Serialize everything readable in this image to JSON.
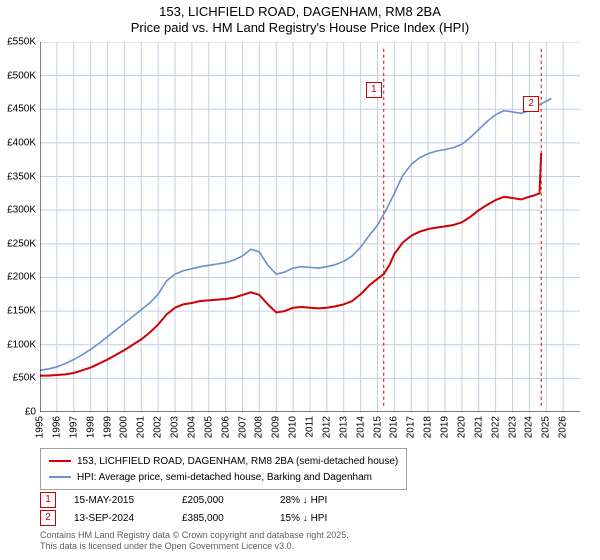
{
  "title": {
    "line1": "153, LICHFIELD ROAD, DAGENHAM, RM8 2BA",
    "line2": "Price paid vs. HM Land Registry's House Price Index (HPI)"
  },
  "chart": {
    "type": "line",
    "background_color": "#ffffff",
    "grid_color": "#c3d0e2",
    "grid_width": 1,
    "axis_color": "#000000",
    "tick_fontsize": 10,
    "x": {
      "min": 1995,
      "max": 2027,
      "ticks": [
        1995,
        1996,
        1997,
        1998,
        1999,
        2000,
        2001,
        2002,
        2003,
        2004,
        2005,
        2006,
        2007,
        2008,
        2009,
        2010,
        2011,
        2012,
        2013,
        2014,
        2015,
        2016,
        2017,
        2018,
        2019,
        2020,
        2021,
        2022,
        2023,
        2024,
        2025,
        2026
      ],
      "rotation": -90
    },
    "y": {
      "min": 0,
      "max": 550000,
      "ticks": [
        0,
        50000,
        100000,
        150000,
        200000,
        250000,
        300000,
        350000,
        400000,
        450000,
        500000,
        550000
      ],
      "tick_labels": [
        "£0",
        "£50K",
        "£100K",
        "£150K",
        "£200K",
        "£250K",
        "£300K",
        "£350K",
        "£400K",
        "£450K",
        "£500K",
        "£550K"
      ]
    },
    "series": [
      {
        "name": "price_paid",
        "label": "153, LICHFIELD ROAD, DAGENHAM, RM8 2BA (semi-detached house)",
        "color": "#d00000",
        "width": 2,
        "data": [
          [
            1995.0,
            54000
          ],
          [
            1995.5,
            54000
          ],
          [
            1996.0,
            55000
          ],
          [
            1996.5,
            56000
          ],
          [
            1997.0,
            58000
          ],
          [
            1997.5,
            62000
          ],
          [
            1998.0,
            66000
          ],
          [
            1998.5,
            72000
          ],
          [
            1999.0,
            78000
          ],
          [
            1999.5,
            85000
          ],
          [
            2000.0,
            92000
          ],
          [
            2000.5,
            100000
          ],
          [
            2001.0,
            108000
          ],
          [
            2001.5,
            118000
          ],
          [
            2002.0,
            130000
          ],
          [
            2002.5,
            145000
          ],
          [
            2003.0,
            155000
          ],
          [
            2003.5,
            160000
          ],
          [
            2004.0,
            162000
          ],
          [
            2004.5,
            165000
          ],
          [
            2005.0,
            166000
          ],
          [
            2005.5,
            167000
          ],
          [
            2006.0,
            168000
          ],
          [
            2006.5,
            170000
          ],
          [
            2007.0,
            174000
          ],
          [
            2007.5,
            178000
          ],
          [
            2008.0,
            174000
          ],
          [
            2008.5,
            160000
          ],
          [
            2009.0,
            148000
          ],
          [
            2009.5,
            150000
          ],
          [
            2010.0,
            155000
          ],
          [
            2010.5,
            156000
          ],
          [
            2011.0,
            155000
          ],
          [
            2011.5,
            154000
          ],
          [
            2012.0,
            155000
          ],
          [
            2012.5,
            157000
          ],
          [
            2013.0,
            160000
          ],
          [
            2013.5,
            165000
          ],
          [
            2014.0,
            175000
          ],
          [
            2014.5,
            188000
          ],
          [
            2015.0,
            198000
          ],
          [
            2015.37,
            205000
          ],
          [
            2015.7,
            218000
          ],
          [
            2016.0,
            235000
          ],
          [
            2016.5,
            252000
          ],
          [
            2017.0,
            262000
          ],
          [
            2017.5,
            268000
          ],
          [
            2018.0,
            272000
          ],
          [
            2018.5,
            274000
          ],
          [
            2019.0,
            276000
          ],
          [
            2019.5,
            278000
          ],
          [
            2020.0,
            282000
          ],
          [
            2020.5,
            290000
          ],
          [
            2021.0,
            300000
          ],
          [
            2021.5,
            308000
          ],
          [
            2022.0,
            315000
          ],
          [
            2022.5,
            320000
          ],
          [
            2023.0,
            318000
          ],
          [
            2023.5,
            316000
          ],
          [
            2024.0,
            320000
          ],
          [
            2024.3,
            322000
          ],
          [
            2024.6,
            325000
          ],
          [
            2024.7,
            385000
          ]
        ]
      },
      {
        "name": "hpi",
        "label": "HPI: Average price, semi-detached house, Barking and Dagenham",
        "color": "#6b8fc9",
        "width": 1.6,
        "data": [
          [
            1995.0,
            62000
          ],
          [
            1995.5,
            64000
          ],
          [
            1996.0,
            67000
          ],
          [
            1996.5,
            72000
          ],
          [
            1997.0,
            78000
          ],
          [
            1997.5,
            85000
          ],
          [
            1998.0,
            93000
          ],
          [
            1998.5,
            102000
          ],
          [
            1999.0,
            112000
          ],
          [
            1999.5,
            122000
          ],
          [
            2000.0,
            132000
          ],
          [
            2000.5,
            142000
          ],
          [
            2001.0,
            152000
          ],
          [
            2001.5,
            162000
          ],
          [
            2002.0,
            175000
          ],
          [
            2002.5,
            195000
          ],
          [
            2003.0,
            205000
          ],
          [
            2003.5,
            210000
          ],
          [
            2004.0,
            213000
          ],
          [
            2004.5,
            216000
          ],
          [
            2005.0,
            218000
          ],
          [
            2005.5,
            220000
          ],
          [
            2006.0,
            222000
          ],
          [
            2006.5,
            226000
          ],
          [
            2007.0,
            232000
          ],
          [
            2007.5,
            242000
          ],
          [
            2008.0,
            238000
          ],
          [
            2008.5,
            218000
          ],
          [
            2009.0,
            205000
          ],
          [
            2009.5,
            208000
          ],
          [
            2010.0,
            214000
          ],
          [
            2010.5,
            216000
          ],
          [
            2011.0,
            215000
          ],
          [
            2011.5,
            214000
          ],
          [
            2012.0,
            216000
          ],
          [
            2012.5,
            219000
          ],
          [
            2013.0,
            224000
          ],
          [
            2013.5,
            232000
          ],
          [
            2014.0,
            245000
          ],
          [
            2014.5,
            262000
          ],
          [
            2015.0,
            278000
          ],
          [
            2015.5,
            300000
          ],
          [
            2016.0,
            325000
          ],
          [
            2016.5,
            352000
          ],
          [
            2017.0,
            368000
          ],
          [
            2017.5,
            378000
          ],
          [
            2018.0,
            384000
          ],
          [
            2018.5,
            388000
          ],
          [
            2019.0,
            390000
          ],
          [
            2019.5,
            393000
          ],
          [
            2020.0,
            398000
          ],
          [
            2020.5,
            408000
          ],
          [
            2021.0,
            420000
          ],
          [
            2021.5,
            432000
          ],
          [
            2022.0,
            442000
          ],
          [
            2022.5,
            448000
          ],
          [
            2023.0,
            446000
          ],
          [
            2023.5,
            444000
          ],
          [
            2024.0,
            448000
          ],
          [
            2024.5,
            456000
          ],
          [
            2025.0,
            462000
          ],
          [
            2025.3,
            466000
          ]
        ]
      }
    ],
    "markers": [
      {
        "n": "1",
        "x": 2015.37,
        "y_top": 45000,
        "y_bot": 540000,
        "box_y": 60000,
        "color": "#d00000"
      },
      {
        "n": "2",
        "x": 2024.7,
        "y_top": 45000,
        "y_bot": 540000,
        "box_y": 80000,
        "color": "#d00000"
      }
    ],
    "marker_line_color": "#d00000",
    "marker_line_dash": "3,3"
  },
  "legend": {
    "rows": [
      {
        "color": "#d00000",
        "label": "153, LICHFIELD ROAD, DAGENHAM, RM8 2BA (semi-detached house)"
      },
      {
        "color": "#6b8fc9",
        "label": "HPI: Average price, semi-detached house, Barking and Dagenham"
      }
    ]
  },
  "sales": [
    {
      "n": "1",
      "date": "15-MAY-2015",
      "price": "£205,000",
      "pct": "28% ↓ HPI"
    },
    {
      "n": "2",
      "date": "13-SEP-2024",
      "price": "£385,000",
      "pct": "15% ↓ HPI"
    }
  ],
  "footer": {
    "line1": "Contains HM Land Registry data © Crown copyright and database right 2025.",
    "line2": "This data is licensed under the Open Government Licence v3.0."
  }
}
